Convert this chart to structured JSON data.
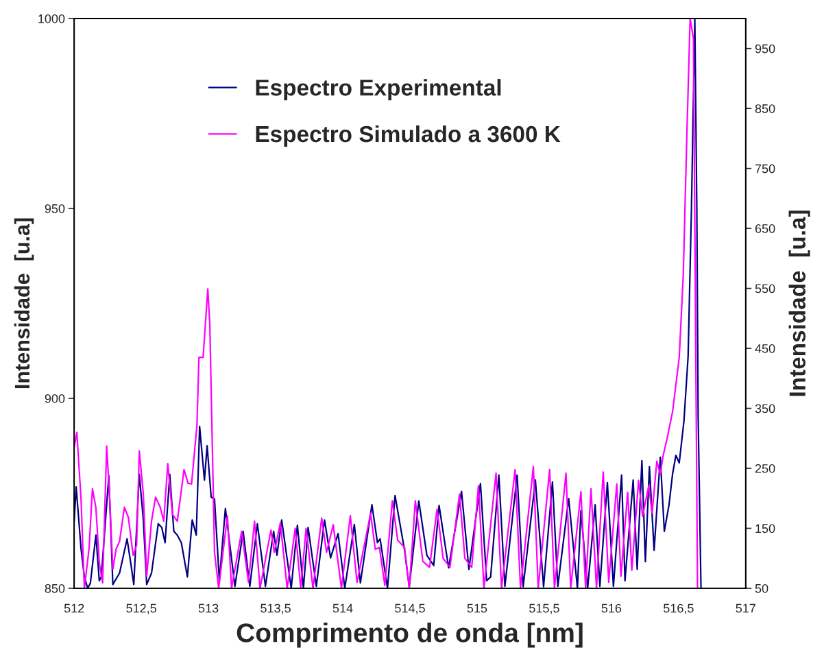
{
  "chart_data": {
    "type": "line",
    "xlabel": "Comprimento de onda [nm]",
    "ylabel": "Intensidade  [u.a]",
    "y2label": "Intensidade  [u.a]",
    "xlim": [
      512,
      517
    ],
    "xticks": [
      512,
      {
        "value": 512.5,
        "label": "512,5"
      },
      513,
      {
        "value": 513.5,
        "label": "513,5"
      },
      514,
      {
        "value": 514.5,
        "label": "514,5"
      },
      515,
      {
        "value": 515.5,
        "label": "515,5"
      },
      516,
      {
        "value": 516.5,
        "label": "516,5"
      },
      517
    ],
    "ylim": [
      850,
      1000
    ],
    "yticks": [
      850,
      900,
      950,
      1000
    ],
    "y2lim": [
      50,
      1000
    ],
    "y2ticks": [
      50,
      150,
      250,
      350,
      450,
      550,
      650,
      750,
      850,
      950
    ],
    "legend": "top left",
    "grid": false,
    "series": [
      {
        "name": "Espectro Experimental",
        "color": "#000080",
        "axis": "y",
        "x": [
          512.0,
          512.015,
          512.051,
          512.076,
          512.101,
          512.121,
          512.162,
          512.187,
          512.202,
          512.258,
          512.288,
          512.338,
          512.394,
          512.424,
          512.444,
          512.485,
          512.515,
          512.54,
          512.576,
          512.626,
          512.652,
          512.677,
          512.712,
          512.742,
          512.768,
          512.798,
          512.843,
          512.879,
          512.909,
          512.934,
          512.97,
          512.99,
          513.02,
          513.045,
          513.081,
          513.126,
          513.197,
          513.258,
          513.308,
          513.364,
          513.424,
          513.485,
          513.51,
          513.545,
          513.616,
          513.662,
          513.707,
          513.742,
          513.803,
          513.864,
          513.909,
          513.965,
          514.015,
          514.086,
          514.131,
          514.217,
          514.258,
          514.278,
          514.333,
          514.389,
          514.46,
          514.495,
          514.566,
          514.626,
          514.677,
          514.717,
          514.788,
          514.884,
          514.939,
          515.025,
          515.071,
          515.101,
          515.162,
          515.207,
          515.298,
          515.343,
          515.434,
          515.495,
          515.561,
          515.601,
          515.682,
          515.747,
          515.773,
          515.823,
          515.879,
          515.914,
          515.97,
          516.015,
          516.076,
          516.101,
          516.162,
          516.192,
          516.227,
          516.253,
          516.283,
          516.318,
          516.364,
          516.394,
          516.429,
          516.455,
          516.48,
          516.505,
          516.54,
          516.571,
          516.596,
          516.621,
          516.636,
          516.646,
          516.667
        ],
        "values": [
          867.7,
          876.7,
          860.5,
          853,
          850,
          851.4,
          864,
          852,
          853,
          879.6,
          851,
          854,
          863,
          856,
          851,
          880,
          868,
          851,
          854,
          867,
          866,
          862,
          880,
          865,
          864,
          862,
          853,
          868,
          864,
          892.6,
          878.5,
          887.5,
          874,
          873.5,
          852,
          871,
          850.5,
          865,
          850.5,
          867,
          850.5,
          865,
          858.7,
          868,
          850,
          866.6,
          850,
          866,
          850.5,
          868,
          858,
          864.4,
          850,
          866.8,
          851.4,
          872,
          862,
          863,
          850,
          874.4,
          860,
          850.4,
          873,
          858.7,
          856,
          871.8,
          855.4,
          875.5,
          855,
          877.6,
          852,
          853,
          879.8,
          850.5,
          879.8,
          850.4,
          878.5,
          850.4,
          878,
          850.5,
          873.6,
          850,
          870.4,
          850,
          872,
          850.5,
          877.8,
          850.5,
          879.8,
          852,
          878.5,
          855,
          883.6,
          857,
          882,
          860,
          884.5,
          865,
          872,
          880,
          885,
          883,
          894,
          911,
          950,
          1000,
          950,
          895,
          850
        ]
      },
      {
        "name": "Espectro Simulado a 3600 K",
        "color": "#ff00ff",
        "axis": "y2",
        "x": [
          512.0,
          512.02,
          512.051,
          512.076,
          512.111,
          512.136,
          512.162,
          512.187,
          512.212,
          512.242,
          512.263,
          512.288,
          512.313,
          512.338,
          512.374,
          512.404,
          512.439,
          512.465,
          512.485,
          512.515,
          512.54,
          512.576,
          512.606,
          512.641,
          512.667,
          512.697,
          512.732,
          512.768,
          512.818,
          512.848,
          512.874,
          512.914,
          512.929,
          512.96,
          512.995,
          513.01,
          513.045,
          513.076,
          513.141,
          513.172,
          513.247,
          513.298,
          513.343,
          513.384,
          513.465,
          513.49,
          513.535,
          513.586,
          513.646,
          513.687,
          513.727,
          513.778,
          513.843,
          513.879,
          513.929,
          513.99,
          514.056,
          514.106,
          514.207,
          514.242,
          514.273,
          514.313,
          514.369,
          514.409,
          514.46,
          514.495,
          514.54,
          514.596,
          514.646,
          514.702,
          514.747,
          514.798,
          514.869,
          514.909,
          514.96,
          515.01,
          515.051,
          515.141,
          515.182,
          515.283,
          515.323,
          515.419,
          515.455,
          515.54,
          515.576,
          515.662,
          515.697,
          515.773,
          515.808,
          515.848,
          515.889,
          515.939,
          515.98,
          516.04,
          516.071,
          516.121,
          516.152,
          516.202,
          516.232,
          516.278,
          516.303,
          516.338,
          516.364,
          516.384,
          516.414,
          516.455,
          516.505,
          516.535,
          516.561,
          516.586,
          516.611,
          516.641
        ],
        "values": [
          285,
          310,
          200,
          50,
          116,
          216,
          184,
          93,
          59,
          287,
          207,
          82,
          116,
          128,
          185,
          168,
          105,
          122,
          279,
          207,
          70,
          162,
          202,
          185,
          162,
          258,
          173,
          162,
          248,
          225,
          224,
          321,
          435,
          435,
          549,
          490,
          110,
          50,
          171,
          50,
          145,
          60,
          162,
          50,
          147,
          110,
          159,
          50,
          150,
          50,
          150,
          50,
          167,
          110,
          156,
          50,
          171,
          60,
          175,
          115,
          118,
          55,
          196,
          130,
          118,
          50,
          196,
          95,
          85,
          182,
          100,
          85,
          207,
          100,
          85,
          221,
          50,
          242,
          50,
          248,
          50,
          253,
          50,
          248,
          50,
          242,
          50,
          211,
          50,
          216,
          50,
          244,
          60,
          224,
          70,
          210,
          80,
          230,
          170,
          221,
          175,
          262,
          240,
          270,
          299,
          344,
          435,
          572,
          800,
          1000,
          966,
          50
        ]
      }
    ]
  }
}
